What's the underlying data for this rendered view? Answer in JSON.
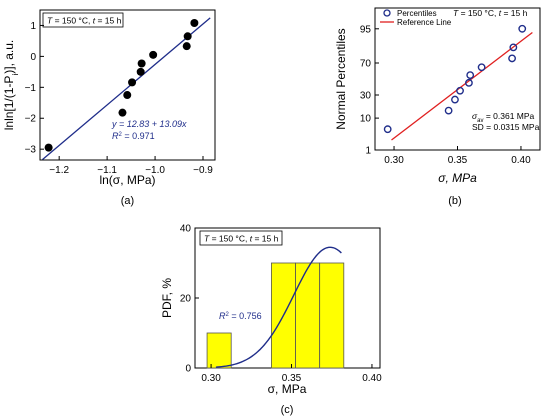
{
  "chart_data": [
    {
      "panel": "(a)",
      "type": "scatter",
      "condition": {
        "T_label": "T",
        "T_value": " = 150 °C, ",
        "t_label": "t",
        "t_value": " = 15 h"
      },
      "xlabel": "ln(σ, MPa)",
      "ylabel": "lnln[1/(1-P",
      "ylabel_sub": "i",
      "ylabel_tail": ")], a.u.",
      "xlim": [
        -1.24,
        -0.875
      ],
      "ylim": [
        -3.35,
        1.5
      ],
      "xticks": [
        -1.2,
        -1.1,
        -1.0,
        -0.9
      ],
      "xtick_labels": [
        "−1.2",
        "−1.1",
        "−1.0",
        "−0.9"
      ],
      "yticks": [
        -3,
        -2,
        -1,
        0,
        1
      ],
      "ytick_labels": [
        "−3",
        "−2",
        "−1",
        "0",
        "1"
      ],
      "points": [
        {
          "x": -1.222,
          "y": -2.95
        },
        {
          "x": -1.068,
          "y": -1.82
        },
        {
          "x": -1.058,
          "y": -1.25
        },
        {
          "x": -1.048,
          "y": -0.84
        },
        {
          "x": -1.03,
          "y": -0.5
        },
        {
          "x": -1.028,
          "y": -0.23
        },
        {
          "x": -1.004,
          "y": 0.05
        },
        {
          "x": -0.934,
          "y": 0.33
        },
        {
          "x": -0.932,
          "y": 0.65
        },
        {
          "x": -0.918,
          "y": 1.08
        }
      ],
      "fit": {
        "intercept": 12.83,
        "slope": 13.09,
        "x_range": [
          -1.235,
          -0.885
        ],
        "equation": "y = 12.83 + 13.09x",
        "r2_label": "R",
        "r2_sup": "2",
        "r2_value": " = 0.971",
        "color": "#1f2d8a"
      },
      "point_color": "#000000"
    },
    {
      "panel": "(b)",
      "type": "scatter",
      "condition": {
        "T_label": "T",
        "T_value": " = 150 °C, ",
        "t_label": "t",
        "t_value": " = 15 h"
      },
      "xlabel": "σ, MPa",
      "ylabel": "Normal Percentiles",
      "scale": "probability",
      "xlim": [
        0.285,
        0.415
      ],
      "ylim_percent": [
        1,
        99
      ],
      "xticks": [
        0.3,
        0.35,
        0.4
      ],
      "xtick_labels": [
        "0.30",
        "0.35",
        "0.40"
      ],
      "yticks": [
        1,
        10,
        30,
        70,
        95
      ],
      "ytick_labels": [
        "1",
        "10",
        "30",
        "70",
        "95"
      ],
      "legend": {
        "position": "top-left",
        "items": [
          {
            "label": "Percentiles",
            "kind": "marker",
            "color": "#1f2d8a"
          },
          {
            "label": "Reference Line",
            "kind": "line",
            "color": "#e02020"
          }
        ]
      },
      "points": [
        {
          "x": 0.295,
          "y": 5
        },
        {
          "x": 0.343,
          "y": 15
        },
        {
          "x": 0.348,
          "y": 25
        },
        {
          "x": 0.352,
          "y": 35
        },
        {
          "x": 0.359,
          "y": 45
        },
        {
          "x": 0.36,
          "y": 55
        },
        {
          "x": 0.369,
          "y": 65
        },
        {
          "x": 0.393,
          "y": 75
        },
        {
          "x": 0.394,
          "y": 85
        },
        {
          "x": 0.401,
          "y": 95
        }
      ],
      "reference_line": {
        "mean": 0.361,
        "sd": 0.0315,
        "x_range": [
          0.298,
          0.409
        ]
      },
      "stats": {
        "mean_sym": "σ",
        "mean_sub": "av",
        "mean_text": " = 0.361 MPa",
        "sd_text": "SD = 0.0315 MPa"
      },
      "point_color": "#1f2d8a",
      "line_color": "#e02020"
    },
    {
      "panel": "(c)",
      "type": "bar",
      "condition": {
        "T_label": "T",
        "T_value": " = 150 °C, ",
        "t_label": "t",
        "t_value": " = 15 h"
      },
      "xlabel": "σ, MPa",
      "ylabel": "PDF, %",
      "xlim": [
        0.29,
        0.405
      ],
      "ylim": [
        0,
        40
      ],
      "xticks": [
        0.3,
        0.35,
        0.4
      ],
      "xtick_labels": [
        "0.30",
        "0.35",
        "0.40"
      ],
      "yticks": [
        0,
        20,
        40
      ],
      "ytick_labels": [
        "0",
        "20",
        "40"
      ],
      "bins": [
        {
          "from": 0.2975,
          "to": 0.3125,
          "value": 10
        },
        {
          "from": 0.3375,
          "to": 0.3525,
          "value": 30
        },
        {
          "from": 0.3525,
          "to": 0.3675,
          "value": 30
        },
        {
          "from": 0.3675,
          "to": 0.3825,
          "value": 30
        }
      ],
      "bar_color": "#ffff00",
      "fit_curve": {
        "amplitude": 34.5,
        "mean": 0.374,
        "sd": 0.0225,
        "x_range": [
          0.303,
          0.381
        ],
        "r2_label": "R",
        "r2_sup": "2",
        "r2_value": " = 0.756",
        "color": "#1f2d8a"
      }
    }
  ]
}
